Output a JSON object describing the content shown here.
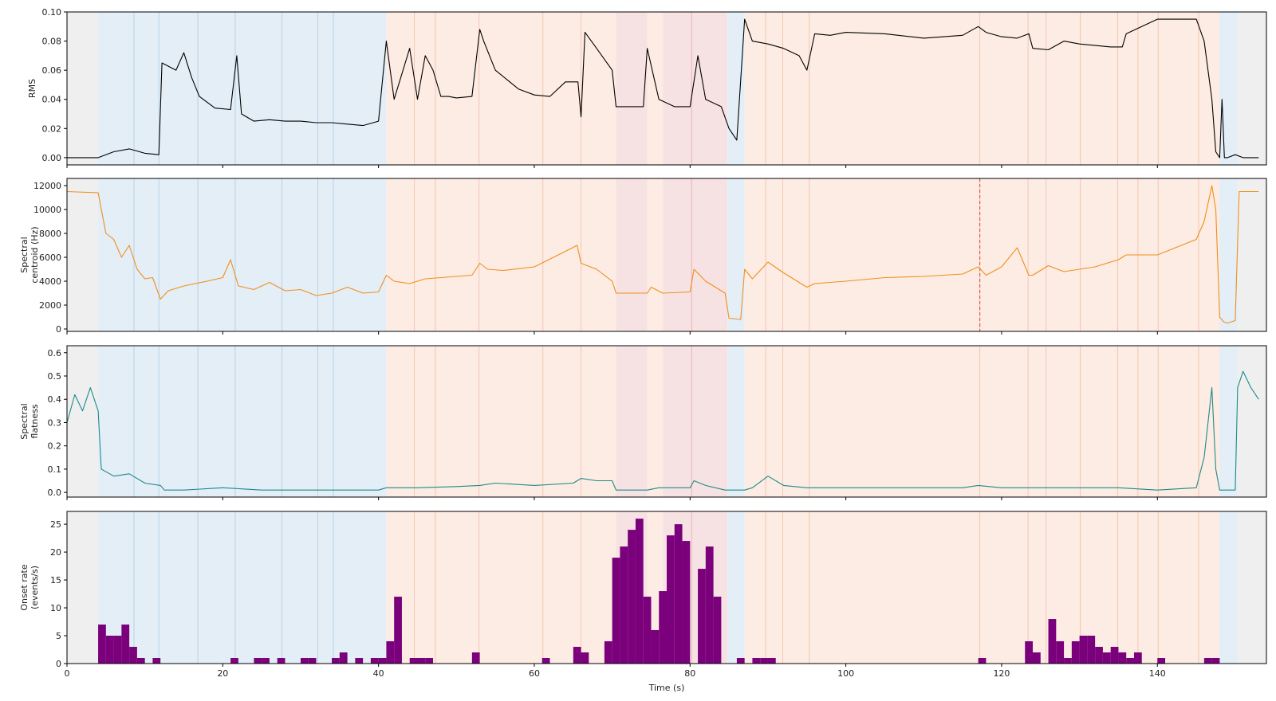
{
  "chart_data": {
    "type": "line",
    "x_axis": {
      "label": "Time (s)",
      "xlim": [
        0,
        154
      ],
      "ticks": [
        0,
        20,
        40,
        60,
        80,
        100,
        120,
        140
      ]
    },
    "segments": {
      "colors": {
        "silence": "#efefef",
        "quiet": "#e3eef7",
        "loud": "#fcece3",
        "dense": "#f7e2e3"
      },
      "boundary_colors": {
        "quiet": "#b7d3e8",
        "loud": "#f3c7b4",
        "dense": "#e7b2b5"
      },
      "regions": [
        {
          "start": 0,
          "end": 4,
          "kind": "silence"
        },
        {
          "start": 4,
          "end": 41,
          "kind": "quiet"
        },
        {
          "start": 41,
          "end": 70.5,
          "kind": "loud"
        },
        {
          "start": 70.5,
          "end": 74.5,
          "kind": "dense"
        },
        {
          "start": 74.5,
          "end": 76.5,
          "kind": "loud"
        },
        {
          "start": 76.5,
          "end": 84.8,
          "kind": "dense"
        },
        {
          "start": 84.8,
          "end": 87,
          "kind": "quiet"
        },
        {
          "start": 87,
          "end": 148,
          "kind": "loud"
        },
        {
          "start": 148,
          "end": 150.3,
          "kind": "quiet"
        },
        {
          "start": 150.3,
          "end": 154,
          "kind": "silence"
        }
      ],
      "boundaries_quiet": [
        8.6,
        11.8,
        16.8,
        21.6,
        27.6,
        32.2,
        34.2
      ],
      "boundaries_loud": [
        44.6,
        47.3,
        52.9,
        61.1,
        66.0,
        89.7,
        91.9,
        95.3,
        117.2,
        123.4,
        125.7,
        130.1,
        134.9,
        137.5,
        140.1,
        145.3
      ],
      "boundaries_dense": [
        80.2
      ],
      "marker_dashed": {
        "x": 117.2,
        "color": "#e8584a"
      }
    },
    "panels": [
      {
        "ylabel": [
          "RMS"
        ],
        "ylim": [
          -0.005,
          0.1
        ],
        "yticks": [
          0.0,
          0.02,
          0.04,
          0.06,
          0.08,
          0.1
        ],
        "tick_decimals": 2,
        "color": "#000000",
        "x": [
          0,
          4,
          6,
          8,
          10,
          11.8,
          12.2,
          14,
          15,
          16,
          17,
          19,
          21,
          21.8,
          22.4,
          24,
          26,
          28,
          30,
          32,
          34,
          36,
          38,
          40,
          41,
          42,
          44,
          45,
          46,
          47,
          48,
          49,
          50,
          52,
          53,
          53.5,
          55,
          58,
          60,
          62,
          64,
          65.6,
          66,
          66.5,
          68,
          70,
          70.5,
          72,
          74,
          74.5,
          76,
          78,
          80,
          81,
          82,
          84,
          85,
          86,
          87,
          88,
          90,
          92,
          94,
          95,
          96,
          98,
          100,
          105,
          110,
          115,
          117,
          118,
          120,
          122,
          123.5,
          124,
          126,
          128,
          130,
          132,
          134,
          135.5,
          136,
          140,
          145,
          146,
          147,
          147.5,
          148,
          148.3,
          148.6,
          149,
          150,
          151,
          153
        ],
        "y": [
          0.0,
          0.0,
          0.004,
          0.006,
          0.003,
          0.002,
          0.065,
          0.06,
          0.072,
          0.055,
          0.042,
          0.034,
          0.033,
          0.07,
          0.03,
          0.025,
          0.026,
          0.025,
          0.025,
          0.024,
          0.024,
          0.023,
          0.022,
          0.025,
          0.08,
          0.04,
          0.075,
          0.04,
          0.07,
          0.06,
          0.042,
          0.042,
          0.041,
          0.042,
          0.088,
          0.08,
          0.06,
          0.047,
          0.043,
          0.042,
          0.052,
          0.052,
          0.028,
          0.086,
          0.075,
          0.06,
          0.035,
          0.035,
          0.035,
          0.075,
          0.04,
          0.035,
          0.035,
          0.07,
          0.04,
          0.035,
          0.02,
          0.012,
          0.095,
          0.08,
          0.078,
          0.075,
          0.07,
          0.06,
          0.085,
          0.084,
          0.086,
          0.085,
          0.082,
          0.084,
          0.09,
          0.086,
          0.083,
          0.082,
          0.085,
          0.075,
          0.074,
          0.08,
          0.078,
          0.077,
          0.076,
          0.076,
          0.085,
          0.095,
          0.095,
          0.08,
          0.04,
          0.004,
          0.0,
          0.04,
          0.0,
          0.0,
          0.002,
          0.0,
          0.0
        ]
      },
      {
        "ylabel": [
          "Spectral",
          "centroid (Hz)"
        ],
        "ylim": [
          -200,
          12600
        ],
        "yticks": [
          0,
          2000,
          4000,
          6000,
          8000,
          10000,
          12000
        ],
        "tick_decimals": 0,
        "color": "#f28e1c",
        "x": [
          0,
          4,
          5,
          6,
          7,
          8,
          9,
          10,
          11,
          12,
          13,
          15,
          18,
          20,
          21,
          22,
          24,
          26,
          28,
          30,
          32,
          34,
          36,
          38,
          40,
          41,
          42,
          44,
          46,
          48,
          50,
          52,
          53,
          54,
          56,
          60,
          64,
          65.5,
          66,
          68,
          70,
          70.5,
          74.5,
          75,
          76.5,
          80,
          80.5,
          82,
          84.5,
          85,
          86.5,
          87,
          88,
          90,
          92,
          95,
          96,
          100,
          105,
          110,
          115,
          117,
          118,
          120,
          122,
          123.5,
          124,
          126,
          128,
          130,
          132,
          135,
          136,
          140,
          145,
          146,
          147,
          147.5,
          148,
          148.5,
          149,
          150,
          150.5,
          153
        ],
        "y": [
          11500,
          11400,
          8000,
          7500,
          6000,
          7000,
          5000,
          4200,
          4300,
          2500,
          3200,
          3600,
          4000,
          4300,
          5800,
          3600,
          3300,
          3900,
          3200,
          3300,
          2800,
          3000,
          3500,
          3000,
          3100,
          4500,
          4000,
          3800,
          4200,
          4300,
          4400,
          4500,
          5500,
          5000,
          4900,
          5200,
          6500,
          7000,
          5500,
          5000,
          4000,
          3000,
          3000,
          3500,
          3000,
          3100,
          5000,
          4000,
          3000,
          900,
          800,
          5000,
          4200,
          5600,
          4700,
          3500,
          3800,
          4000,
          4300,
          4400,
          4600,
          5200,
          4500,
          5200,
          6800,
          4500,
          4500,
          5300,
          4800,
          5000,
          5200,
          5800,
          6200,
          6200,
          7500,
          9000,
          12000,
          10000,
          1000,
          600,
          500,
          700,
          11500,
          11500
        ]
      },
      {
        "ylabel": [
          "Spectral",
          "flatness"
        ],
        "ylim": [
          -0.02,
          0.63
        ],
        "yticks": [
          0.0,
          0.1,
          0.2,
          0.3,
          0.4,
          0.5,
          0.6
        ],
        "tick_decimals": 1,
        "color": "#1f8a8a",
        "x": [
          0,
          1,
          2,
          3,
          4,
          4.4,
          6,
          8,
          10,
          12,
          12.5,
          15,
          20,
          25,
          30,
          35,
          40,
          41,
          45,
          50,
          53,
          55,
          60,
          65,
          66,
          68,
          70,
          70.5,
          74.5,
          76,
          80,
          80.5,
          82,
          84.5,
          85,
          87,
          88,
          90,
          92,
          95,
          100,
          105,
          110,
          115,
          117,
          120,
          125,
          130,
          135,
          140,
          145,
          146,
          147,
          147.5,
          148,
          150,
          150.3,
          151,
          152,
          153
        ],
        "y": [
          0.3,
          0.42,
          0.35,
          0.45,
          0.35,
          0.1,
          0.07,
          0.08,
          0.04,
          0.03,
          0.01,
          0.01,
          0.02,
          0.01,
          0.01,
          0.01,
          0.01,
          0.02,
          0.02,
          0.025,
          0.03,
          0.04,
          0.03,
          0.04,
          0.06,
          0.05,
          0.05,
          0.01,
          0.01,
          0.02,
          0.02,
          0.05,
          0.03,
          0.01,
          0.01,
          0.01,
          0.02,
          0.07,
          0.03,
          0.02,
          0.02,
          0.02,
          0.02,
          0.02,
          0.03,
          0.02,
          0.02,
          0.02,
          0.02,
          0.01,
          0.02,
          0.15,
          0.45,
          0.1,
          0.01,
          0.01,
          0.45,
          0.52,
          0.45,
          0.4
        ]
      },
      {
        "ylabel": [
          "Onset rate",
          "(events/s)"
        ],
        "ylim": [
          0,
          27.3
        ],
        "yticks": [
          0,
          5,
          10,
          15,
          20,
          25
        ],
        "tick_decimals": 0,
        "color": "#7b007b",
        "kind": "bar",
        "bin_width": 1,
        "bin_start": [
          4,
          5,
          6,
          7,
          8,
          9,
          11,
          21,
          24,
          25,
          27,
          30,
          31,
          34,
          35,
          37,
          39,
          40,
          41,
          42,
          44,
          45,
          46,
          52,
          61,
          65,
          66,
          69,
          70,
          71,
          72,
          73,
          74,
          75,
          76,
          77,
          78,
          79,
          81,
          82,
          83,
          86,
          88,
          89,
          90,
          117,
          123,
          124,
          126,
          127,
          128,
          129,
          130,
          131,
          132,
          133,
          134,
          135,
          136,
          137,
          140,
          146,
          147
        ],
        "values": [
          7,
          5,
          5,
          7,
          3,
          1,
          1,
          1,
          1,
          1,
          1,
          1,
          1,
          1,
          2,
          1,
          1,
          1,
          4,
          12,
          1,
          1,
          1,
          2,
          1,
          3,
          2,
          4,
          19,
          21,
          24,
          26,
          12,
          6,
          13,
          23,
          25,
          22,
          17,
          21,
          12,
          1,
          1,
          1,
          1,
          1,
          4,
          2,
          8,
          4,
          1,
          4,
          5,
          5,
          3,
          2,
          3,
          2,
          1,
          2,
          1,
          1,
          1
        ]
      }
    ]
  }
}
